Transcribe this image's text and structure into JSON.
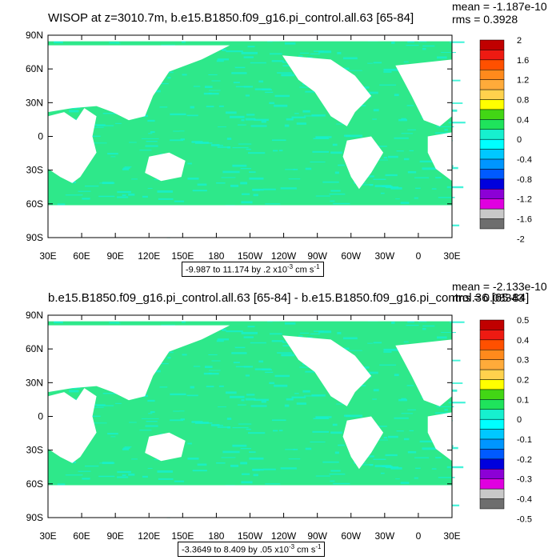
{
  "colors": {
    "land": "#ffffff",
    "ocean_base": "#2ee88a",
    "ocean_alt": "#16f0cf",
    "frame": "#000000"
  },
  "palette": [
    "#c00000",
    "#ee1a12",
    "#ff5000",
    "#ff8a1c",
    "#ffab3a",
    "#ffd24d",
    "#ffff00",
    "#42d615",
    "#1fe35c",
    "#16f0cf",
    "#00ffff",
    "#00c8ff",
    "#0096ff",
    "#005aff",
    "#0000dd",
    "#8c00d6",
    "#e000e0",
    "#c8c8c8",
    "#6e6e6e"
  ],
  "panels": [
    {
      "title": "WISOP at z=3010.7m, b.e15.B1850.f09_g16.pi_control.all.63 [65-84]",
      "mean": "mean = -1.187e-10",
      "rms": "rms = 0.3928",
      "range_label": "-9.987 to 11.174 by .2 x10",
      "range_exp": "-3",
      "range_unit": " cm s",
      "range_unit_exp": "-1"
    },
    {
      "title": "b.e15.B1850.f09_g16.pi_control.all.63 [65-84] - b.e15.B1850.f09_g16.pi_control.36 [65-84]",
      "mean": "mean = -2.133e-10",
      "rms": "rms = 0.08343",
      "range_label": "-3.3649 to 8.409 by .05 x10",
      "range_exp": "-3",
      "range_unit": " cm s",
      "range_unit_exp": "-1"
    }
  ],
  "chart_data": [
    {
      "type": "heatmap",
      "title": "WISOP at z=3010.7m, b.e15.B1850.f09_g16.pi_control.all.63 [65-84]",
      "x_ticks": [
        "30E",
        "60E",
        "90E",
        "120E",
        "150E",
        "180",
        "150W",
        "120W",
        "90W",
        "60W",
        "30W",
        "0",
        "30E"
      ],
      "y_ticks": [
        "90N",
        "60N",
        "30N",
        "0",
        "30S",
        "60S",
        "90S"
      ],
      "xlim": [
        30,
        390
      ],
      "ylim": [
        -90,
        90
      ],
      "colorbar_levels": [
        2,
        1.6,
        1.2,
        0.8,
        0.4,
        0,
        -0.4,
        -0.8,
        -1.2,
        -1.6,
        -2
      ],
      "colorbar_placement": "right"
    },
    {
      "type": "heatmap",
      "title": "b.e15.B1850.f09_g16.pi_control.all.63 [65-84] - b.e15.B1850.f09_g16.pi_control.36 [65-84]",
      "x_ticks": [
        "30E",
        "60E",
        "90E",
        "120E",
        "150E",
        "180",
        "150W",
        "120W",
        "90W",
        "60W",
        "30W",
        "0",
        "30E"
      ],
      "y_ticks": [
        "90N",
        "60N",
        "30N",
        "0",
        "30S",
        "60S",
        "90S"
      ],
      "xlim": [
        30,
        390
      ],
      "ylim": [
        -90,
        90
      ],
      "colorbar_levels": [
        0.5,
        0.4,
        0.3,
        0.2,
        0.1,
        0,
        -0.1,
        -0.2,
        -0.3,
        -0.4,
        -0.5
      ],
      "colorbar_placement": "right"
    }
  ]
}
